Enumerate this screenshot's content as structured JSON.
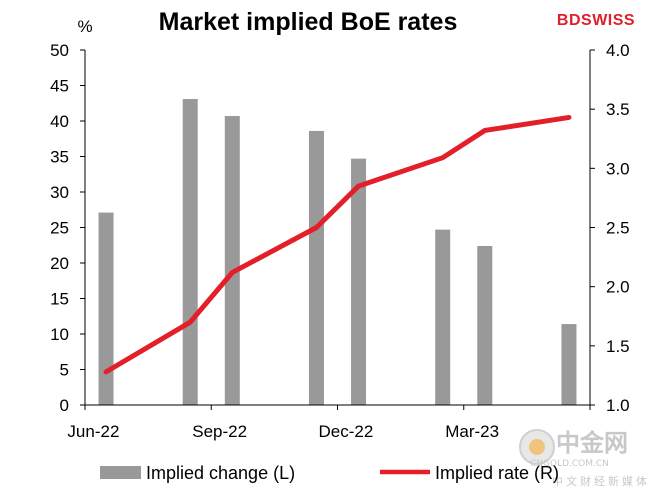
{
  "brand": {
    "logo": "BDSWISS",
    "logo_color": "#e0202a"
  },
  "watermark": {
    "main": "中金网",
    "url": "CNGOLD.COM.CN",
    "tagline": "中文财经新媒体",
    "color": "#c8c8c8"
  },
  "chart_data": {
    "type": "bar+line",
    "title": "Market implied BoE rates",
    "left_axis": {
      "label": "%",
      "min": 0,
      "max": 50,
      "step": 5,
      "ticks": [
        "0",
        "5",
        "10",
        "15",
        "20",
        "25",
        "30",
        "35",
        "40",
        "45",
        "50"
      ]
    },
    "right_axis": {
      "min": 1.0,
      "max": 4.0,
      "step": 0.5,
      "ticks": [
        "1.0",
        "1.5",
        "2.0",
        "2.5",
        "3.0",
        "3.5",
        "4.0"
      ]
    },
    "x_ticks": [
      "Jun-22",
      "Sep-22",
      "Dec-22",
      "Mar-23"
    ],
    "grid": false,
    "legend_position": "bottom",
    "series": [
      {
        "name": "Implied change (L)",
        "type": "bar",
        "axis": "left",
        "color": "#999999",
        "values": [
          27.1,
          null,
          43.1,
          40.7,
          null,
          38.6,
          34.7,
          null,
          24.7,
          22.4,
          null,
          11.4
        ]
      },
      {
        "name": "Implied rate (R)",
        "type": "line",
        "axis": "right",
        "color": "#e3202a",
        "values": [
          1.28,
          null,
          1.7,
          2.12,
          null,
          2.5,
          2.85,
          null,
          3.09,
          3.32,
          null,
          3.43
        ]
      }
    ]
  }
}
